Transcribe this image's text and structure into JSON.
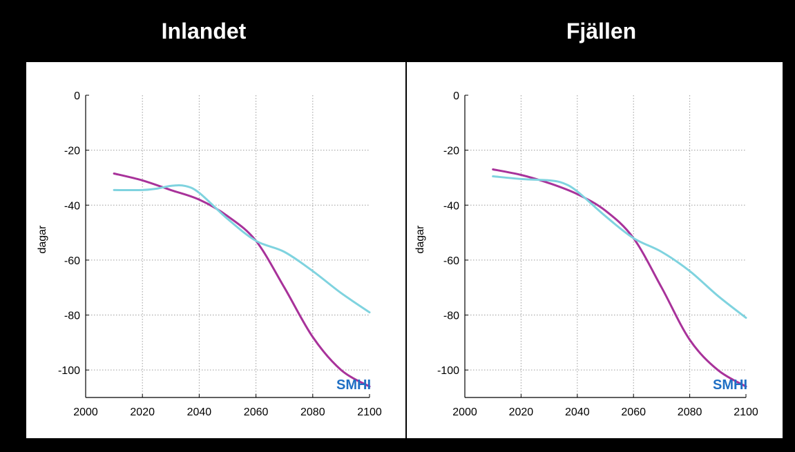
{
  "headers": {
    "left": "Inlandet",
    "right": "Fjällen"
  },
  "colors": {
    "series_magenta": "#a8329a",
    "series_cyan": "#7fd3df"
  },
  "logo": {
    "text": "SMHI"
  },
  "chart_data": [
    {
      "type": "line",
      "title": "",
      "xlabel": "",
      "ylabel": "dagar",
      "xlim": [
        2000,
        2100
      ],
      "ylim": [
        -110,
        0
      ],
      "xticks": [
        2000,
        2020,
        2040,
        2060,
        2080,
        2100
      ],
      "yticks": [
        0,
        -20,
        -40,
        -60,
        -80,
        -100
      ],
      "grid": true,
      "series": [
        {
          "color": "#a8329a",
          "x": [
            2010,
            2020,
            2030,
            2040,
            2050,
            2060,
            2070,
            2080,
            2090,
            2100
          ],
          "y": [
            -28.5,
            -31,
            -34.5,
            -38,
            -44,
            -53,
            -70,
            -88,
            -100,
            -106
          ]
        },
        {
          "color": "#7fd3df",
          "x": [
            2010,
            2020,
            2025,
            2030,
            2035,
            2040,
            2050,
            2060,
            2070,
            2080,
            2090,
            2100
          ],
          "y": [
            -34.5,
            -34.5,
            -34,
            -33,
            -33,
            -35.5,
            -45,
            -53,
            -57,
            -64,
            -72,
            -79
          ]
        }
      ]
    },
    {
      "type": "line",
      "title": "",
      "xlabel": "",
      "ylabel": "dagar",
      "xlim": [
        2000,
        2100
      ],
      "ylim": [
        -110,
        0
      ],
      "xticks": [
        2000,
        2020,
        2040,
        2060,
        2080,
        2100
      ],
      "yticks": [
        0,
        -20,
        -40,
        -60,
        -80,
        -100
      ],
      "grid": true,
      "series": [
        {
          "color": "#a8329a",
          "x": [
            2010,
            2020,
            2030,
            2040,
            2050,
            2060,
            2070,
            2080,
            2090,
            2100
          ],
          "y": [
            -27,
            -29,
            -32,
            -36,
            -42,
            -52,
            -70,
            -89,
            -100,
            -106
          ]
        },
        {
          "color": "#7fd3df",
          "x": [
            2010,
            2020,
            2030,
            2035,
            2040,
            2050,
            2060,
            2070,
            2080,
            2090,
            2100
          ],
          "y": [
            -29.5,
            -30.5,
            -31,
            -32,
            -35,
            -44,
            -52,
            -57,
            -64,
            -73,
            -81
          ]
        }
      ]
    }
  ]
}
